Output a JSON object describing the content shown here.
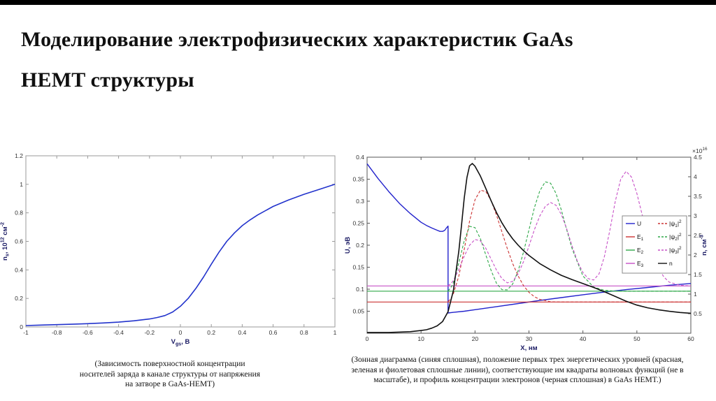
{
  "slide": {
    "title_line1": "Моделирование электрофизических характеристик GaAs",
    "title_line2": "HEMT структуры"
  },
  "captions": {
    "left": "(Зависимость поверхностной концентрации носителей заряда в канале структуры от напряжения на затворе в GaAs-HEMT)",
    "right": "(Зонная диаграмма (синяя сплошная), положение первых трех энергетических уровней (красная, зеленая и фиолетовая сплошные линии), соответствующие им квадраты волновых функций (не в масштабе), и профиль концентрации электронов (черная сплошная) в GaAs HEMT.)"
  },
  "chart_data": [
    {
      "type": "line",
      "title": "",
      "xlabel": "V_{gs}, В",
      "ylabel": "n_{s}, 10^{12} см^{-2}",
      "xlim": [
        -1,
        1
      ],
      "ylim": [
        0,
        1.2
      ],
      "xticks": [
        -1,
        -0.8,
        -0.6,
        -0.4,
        -0.2,
        0,
        0.2,
        0.4,
        0.6,
        0.8,
        1
      ],
      "yticks": [
        0,
        0.2,
        0.4,
        0.6,
        0.8,
        1,
        1.2
      ],
      "grid": false,
      "series": [
        {
          "name": "ns",
          "color": "#2233cc",
          "dash": false,
          "width": 1.6,
          "axis": "left",
          "x": [
            -1,
            -0.9,
            -0.8,
            -0.7,
            -0.6,
            -0.5,
            -0.4,
            -0.3,
            -0.2,
            -0.15,
            -0.1,
            -0.05,
            0,
            0.05,
            0.1,
            0.15,
            0.2,
            0.25,
            0.3,
            0.35,
            0.4,
            0.45,
            0.5,
            0.6,
            0.7,
            0.8,
            0.9,
            1
          ],
          "y": [
            0.01,
            0.013,
            0.016,
            0.019,
            0.023,
            0.028,
            0.034,
            0.043,
            0.056,
            0.066,
            0.08,
            0.105,
            0.145,
            0.2,
            0.27,
            0.35,
            0.44,
            0.525,
            0.6,
            0.66,
            0.71,
            0.75,
            0.785,
            0.845,
            0.89,
            0.93,
            0.965,
            1.0
          ]
        }
      ]
    },
    {
      "type": "line",
      "title": "",
      "xlabel": "X, нм",
      "ylabel": "U, эВ",
      "y2label": "n, см^{-3}",
      "y2scale": "×10^{16}",
      "xlim": [
        0,
        60
      ],
      "ylim": [
        0,
        0.4
      ],
      "y2lim": [
        0,
        4.5
      ],
      "xticks": [
        0,
        10,
        20,
        30,
        40,
        50,
        60
      ],
      "yticks": [
        0.05,
        0.1,
        0.15,
        0.2,
        0.25,
        0.3,
        0.35,
        0.4
      ],
      "y2ticks": [
        0.5,
        1,
        1.5,
        2,
        2.5,
        3,
        3.5,
        4,
        4.5
      ],
      "grid": false,
      "legend": {
        "position": "right-middle",
        "rows": 4,
        "entries": [
          {
            "label": "U",
            "color": "#2222cc",
            "dash": false
          },
          {
            "label": "E_{1}",
            "color": "#cc3333",
            "dash": false
          },
          {
            "label": "E_{2}",
            "color": "#2fa849",
            "dash": false
          },
          {
            "label": "E_{3}",
            "color": "#c750c7",
            "dash": false
          },
          {
            "label": "|ψ_{1}|^{2}",
            "color": "#cc3333",
            "dash": true
          },
          {
            "label": "|ψ_{2}|^{2}",
            "color": "#2fa849",
            "dash": true
          },
          {
            "label": "|ψ_{3}|^{2}",
            "color": "#c750c7",
            "dash": true
          },
          {
            "label": "n",
            "color": "#111111",
            "dash": false
          }
        ]
      },
      "series": [
        {
          "name": "U",
          "color": "#2222cc",
          "dash": false,
          "width": 1.4,
          "axis": "left",
          "x": [
            0,
            2,
            4,
            6,
            8,
            10,
            11,
            12,
            13,
            13.5,
            14,
            14.4,
            14.7,
            15,
            15,
            16,
            18,
            20,
            24,
            28,
            32,
            36,
            40,
            44,
            48,
            52,
            56,
            60
          ],
          "y": [
            0.385,
            0.352,
            0.322,
            0.295,
            0.272,
            0.252,
            0.245,
            0.239,
            0.234,
            0.2315,
            0.2315,
            0.234,
            0.239,
            0.2435,
            0.046,
            0.0475,
            0.05,
            0.0535,
            0.0605,
            0.0675,
            0.0745,
            0.081,
            0.0875,
            0.0935,
            0.099,
            0.104,
            0.109,
            0.113
          ]
        },
        {
          "name": "E1",
          "color": "#cc3333",
          "dash": false,
          "width": 1.1,
          "axis": "left",
          "x": [
            0,
            60
          ],
          "y": [
            0.071,
            0.071
          ]
        },
        {
          "name": "E2",
          "color": "#2fa849",
          "dash": false,
          "width": 1.1,
          "axis": "left",
          "x": [
            0,
            60
          ],
          "y": [
            0.0955,
            0.0955
          ]
        },
        {
          "name": "E3",
          "color": "#c750c7",
          "dash": false,
          "width": 1.1,
          "axis": "left",
          "x": [
            0,
            60
          ],
          "y": [
            0.1075,
            0.1075
          ]
        },
        {
          "name": "psi1-squared",
          "color": "#cc3333",
          "dash": true,
          "width": 1.1,
          "axis": "left",
          "x": [
            15,
            15.5,
            16,
            17,
            18,
            19,
            20,
            21,
            22,
            23,
            24,
            25,
            26,
            27,
            28,
            29,
            30,
            31,
            32,
            34,
            36,
            40,
            45,
            50,
            55,
            60
          ],
          "y": [
            0.072,
            0.078,
            0.09,
            0.13,
            0.19,
            0.255,
            0.303,
            0.325,
            0.322,
            0.301,
            0.268,
            0.23,
            0.192,
            0.158,
            0.13,
            0.108,
            0.093,
            0.083,
            0.077,
            0.0715,
            0.071,
            0.071,
            0.071,
            0.071,
            0.071,
            0.071
          ]
        },
        {
          "name": "psi2-squared",
          "color": "#2fa849",
          "dash": true,
          "width": 1.1,
          "axis": "left",
          "x": [
            15,
            15.5,
            16,
            17,
            18,
            19,
            20,
            21,
            22,
            23,
            24,
            25,
            26,
            27,
            28,
            29,
            30,
            31,
            32,
            33,
            34,
            35,
            36,
            37,
            38,
            40,
            42,
            44,
            46,
            48,
            50,
            55,
            60
          ],
          "y": [
            0.096,
            0.103,
            0.115,
            0.16,
            0.21,
            0.243,
            0.24,
            0.215,
            0.178,
            0.142,
            0.113,
            0.099,
            0.0985,
            0.112,
            0.142,
            0.185,
            0.235,
            0.285,
            0.323,
            0.344,
            0.341,
            0.318,
            0.28,
            0.235,
            0.192,
            0.13,
            0.105,
            0.0975,
            0.0958,
            0.0955,
            0.0955,
            0.0955,
            0.0955
          ]
        },
        {
          "name": "psi3-squared",
          "color": "#c750c7",
          "dash": true,
          "width": 1.1,
          "axis": "left",
          "x": [
            15,
            15.5,
            16,
            17,
            18,
            19,
            20,
            21,
            22,
            23,
            24,
            25,
            26,
            27,
            28,
            29,
            30,
            31,
            32,
            33,
            34,
            35,
            36,
            37,
            38,
            39,
            40,
            41,
            42,
            43,
            44,
            45,
            46,
            47,
            48,
            49,
            50,
            51,
            52,
            53,
            54,
            55,
            56,
            58,
            60
          ],
          "y": [
            0.108,
            0.112,
            0.12,
            0.145,
            0.175,
            0.2,
            0.213,
            0.21,
            0.193,
            0.168,
            0.143,
            0.124,
            0.1145,
            0.118,
            0.135,
            0.163,
            0.198,
            0.235,
            0.266,
            0.288,
            0.297,
            0.291,
            0.27,
            0.237,
            0.198,
            0.163,
            0.138,
            0.124,
            0.121,
            0.135,
            0.175,
            0.235,
            0.3,
            0.35,
            0.368,
            0.355,
            0.318,
            0.268,
            0.218,
            0.178,
            0.148,
            0.128,
            0.116,
            0.109,
            0.1075
          ]
        },
        {
          "name": "n",
          "color": "#111111",
          "dash": false,
          "width": 1.6,
          "axis": "right",
          "x": [
            0,
            4,
            8,
            10,
            11,
            12,
            13,
            14,
            15,
            16,
            17,
            17.5,
            18,
            18.5,
            19,
            19.5,
            20,
            21,
            22,
            23,
            24,
            25,
            26,
            27,
            28,
            29,
            30,
            32,
            34,
            36,
            38,
            40,
            42,
            44,
            46,
            48,
            50,
            52,
            54,
            56,
            58,
            60
          ],
          "y": [
            0.02,
            0.02,
            0.04,
            0.07,
            0.09,
            0.13,
            0.19,
            0.3,
            0.55,
            1.1,
            2.1,
            2.75,
            3.45,
            3.98,
            4.28,
            4.34,
            4.27,
            4.02,
            3.7,
            3.38,
            3.08,
            2.82,
            2.6,
            2.41,
            2.25,
            2.11,
            1.99,
            1.78,
            1.62,
            1.48,
            1.37,
            1.27,
            1.17,
            1.06,
            0.94,
            0.82,
            0.72,
            0.65,
            0.6,
            0.56,
            0.53,
            0.51
          ]
        }
      ]
    }
  ]
}
